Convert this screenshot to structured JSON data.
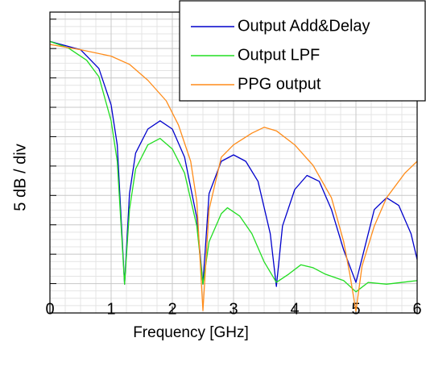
{
  "chart_data": {
    "type": "line",
    "x_label": "Frequency [GHz]",
    "y_label": "5 dB / div",
    "xlim": [
      0,
      6
    ],
    "xticks": [
      0,
      1,
      2,
      3,
      4,
      5,
      6
    ],
    "ylim": [
      -50,
      1.2
    ],
    "yticks": [
      -50,
      -45,
      -40,
      -35,
      -30,
      -25,
      -20,
      -15,
      -10,
      -5,
      0
    ],
    "grid": true,
    "legend": "upper right",
    "series": [
      {
        "name": "Output Add&Delay",
        "color": "#0000cc",
        "x": [
          0,
          0.5,
          0.8,
          1.0,
          1.1,
          1.22,
          1.3,
          1.4,
          1.6,
          1.8,
          2.0,
          2.2,
          2.4,
          2.5,
          2.6,
          2.8,
          3.0,
          3.2,
          3.4,
          3.6,
          3.7,
          3.8,
          4.0,
          4.2,
          4.4,
          4.6,
          4.8,
          5.0,
          5.1,
          5.3,
          5.5,
          5.7,
          5.9,
          6.0
        ],
        "values": [
          -3.8,
          -5.2,
          -8.4,
          -14.6,
          -21.4,
          -45.1,
          -29.7,
          -22.8,
          -18.7,
          -17.3,
          -18.7,
          -23.5,
          -33.8,
          -45.1,
          -29.7,
          -24.2,
          -23.1,
          -24.2,
          -27.6,
          -36.5,
          -45.5,
          -35.2,
          -29.0,
          -26.6,
          -27.6,
          -32.4,
          -39.3,
          -44.8,
          -40.7,
          -32.4,
          -30.4,
          -31.7,
          -36.5,
          -40.9
        ]
      },
      {
        "name": "Output LPF",
        "color": "#22dd22",
        "x": [
          0,
          0.3,
          0.6,
          0.8,
          1.0,
          1.1,
          1.22,
          1.3,
          1.4,
          1.6,
          1.8,
          2.0,
          2.2,
          2.4,
          2.5,
          2.6,
          2.8,
          2.9,
          3.1,
          3.3,
          3.5,
          3.7,
          3.9,
          4.1,
          4.3,
          4.5,
          4.8,
          5.0,
          5.2,
          5.5,
          6.0
        ],
        "values": [
          -3.8,
          -4.9,
          -7.0,
          -9.8,
          -17.3,
          -24.2,
          -45.1,
          -32.4,
          -25.5,
          -21.4,
          -20.3,
          -22.1,
          -26.2,
          -35.2,
          -45.1,
          -37.9,
          -33.1,
          -32.1,
          -33.5,
          -36.5,
          -41.3,
          -44.8,
          -43.4,
          -41.8,
          -42.3,
          -43.4,
          -44.5,
          -46.4,
          -44.8,
          -45.1,
          -44.5
        ]
      },
      {
        "name": "PPG output",
        "color": "#ff8c1a",
        "x": [
          0,
          0.5,
          1.0,
          1.3,
          1.6,
          1.9,
          2.1,
          2.3,
          2.4,
          2.5,
          2.6,
          2.8,
          3.0,
          3.3,
          3.5,
          3.7,
          4.0,
          4.3,
          4.6,
          4.8,
          4.9,
          5.0,
          5.1,
          5.3,
          5.5,
          5.8,
          6.0
        ],
        "values": [
          -4.3,
          -5.2,
          -6.3,
          -7.7,
          -10.4,
          -13.9,
          -18.0,
          -24.2,
          -31.0,
          -49.6,
          -32.4,
          -23.5,
          -21.4,
          -19.4,
          -18.4,
          -19.0,
          -21.4,
          -24.9,
          -30.4,
          -37.9,
          -43.4,
          -49.7,
          -42.0,
          -35.2,
          -30.4,
          -26.2,
          -24.2
        ]
      }
    ]
  }
}
